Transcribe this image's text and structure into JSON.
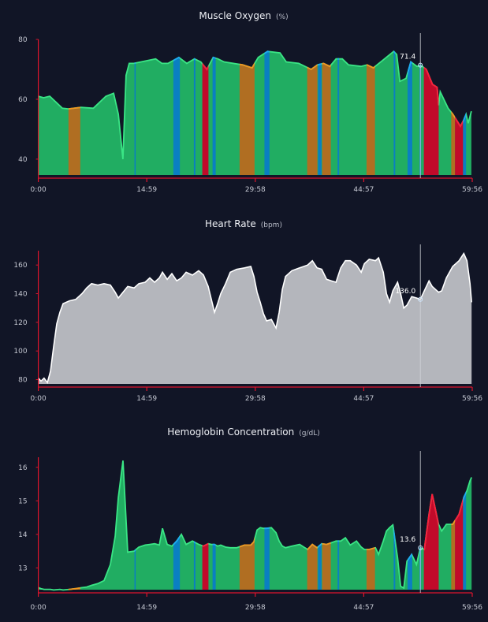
{
  "colors": {
    "background": "#111526",
    "axis": "#e0142c",
    "zones": {
      "green": {
        "fill": "#21ad62",
        "line": "#3ae585"
      },
      "orange": {
        "fill": "#b06e22",
        "line": "#f5941f"
      },
      "blue": {
        "fill": "#0a7fc2",
        "line": "#1ea8f5"
      },
      "red": {
        "fill": "#c20a2a",
        "line": "#ff1a3a"
      }
    },
    "heart_rate_fill": "#b4b6bc",
    "heart_rate_line": "#ffffff"
  },
  "chart_data": [
    {
      "type": "area",
      "title": "Muscle Oxygen",
      "unit": "(%)",
      "x_ticks": [
        "0:00",
        "14:59",
        "29:58",
        "44:57",
        "59:56"
      ],
      "x_range": [
        "0:00",
        "59:56"
      ],
      "y_ticks": [
        40,
        60,
        80
      ],
      "ylim": [
        34.7,
        80
      ],
      "grid": false,
      "fill_mode": "zones",
      "hover": {
        "x": "52:46",
        "value": "71.4"
      },
      "points": [
        [
          "0:00",
          61
        ],
        [
          "0:44",
          60.5
        ],
        [
          "1:35",
          61
        ],
        [
          "2:27",
          59
        ],
        [
          "3:19",
          57
        ],
        [
          "4:10",
          56.8
        ],
        [
          "5:53",
          57.3
        ],
        [
          "7:36",
          57
        ],
        [
          "8:28",
          59
        ],
        [
          "9:20",
          61
        ],
        [
          "10:24",
          62
        ],
        [
          "11:03",
          55
        ],
        [
          "11:41",
          40
        ],
        [
          "12:07",
          68
        ],
        [
          "12:33",
          72
        ],
        [
          "13:12",
          72
        ],
        [
          "16:12",
          73.5
        ],
        [
          "17:04",
          72
        ],
        [
          "17:55",
          72
        ],
        [
          "19:25",
          74
        ],
        [
          "20:30",
          72
        ],
        [
          "21:34",
          73.5
        ],
        [
          "22:26",
          72.5
        ],
        [
          "23:17",
          70
        ],
        [
          "24:09",
          74
        ],
        [
          "24:48",
          73.5
        ],
        [
          "25:39",
          72.5
        ],
        [
          "28:14",
          71.5
        ],
        [
          "29:31",
          70.5
        ],
        [
          "30:23",
          74
        ],
        [
          "31:40",
          76
        ],
        [
          "33:23",
          75.5
        ],
        [
          "34:15",
          72.5
        ],
        [
          "35:58",
          72
        ],
        [
          "37:41",
          70
        ],
        [
          "38:33",
          71.5
        ],
        [
          "39:24",
          72
        ],
        [
          "40:16",
          71
        ],
        [
          "41:08",
          73.5
        ],
        [
          "41:59",
          73.5
        ],
        [
          "42:51",
          71.5
        ],
        [
          "44:34",
          71
        ],
        [
          "45:25",
          71.5
        ],
        [
          "46:17",
          70.5
        ],
        [
          "47:34",
          73
        ],
        [
          "49:05",
          76
        ],
        [
          "49:30",
          75
        ],
        [
          "49:56",
          66
        ],
        [
          "50:48",
          67
        ],
        [
          "51:27",
          72.5
        ],
        [
          "52:18",
          71
        ],
        [
          "52:49",
          71.4
        ],
        [
          "53:35",
          70
        ],
        [
          "54:27",
          65
        ],
        [
          "55:05",
          64
        ],
        [
          "55:18",
          58
        ],
        [
          "55:31",
          62.5
        ],
        [
          "56:36",
          57
        ],
        [
          "57:15",
          55
        ],
        [
          "58:18",
          51
        ],
        [
          "58:45",
          53
        ],
        [
          "59:05",
          55
        ],
        [
          "59:23",
          52
        ],
        [
          "59:49",
          56
        ]
      ]
    },
    {
      "type": "area",
      "title": "Heart Rate",
      "unit": "(bpm)",
      "x_ticks": [
        "0:00",
        "14:59",
        "29:58",
        "44:57",
        "59:56"
      ],
      "x_range": [
        "0:00",
        "59:56"
      ],
      "y_ticks": [
        80,
        100,
        120,
        140,
        160
      ],
      "ylim": [
        77,
        170
      ],
      "grid": false,
      "fill_mode": "single",
      "hover": {
        "x": "52:46",
        "value": "136.0"
      },
      "points": [
        [
          "0:00",
          81
        ],
        [
          "0:22",
          79
        ],
        [
          "0:48",
          81
        ],
        [
          "1:15",
          78
        ],
        [
          "1:41",
          86
        ],
        [
          "2:07",
          103
        ],
        [
          "2:33",
          119
        ],
        [
          "2:59",
          127
        ],
        [
          "3:25",
          133
        ],
        [
          "4:18",
          135
        ],
        [
          "5:10",
          136
        ],
        [
          "6:02",
          140
        ],
        [
          "6:41",
          144
        ],
        [
          "7:21",
          147
        ],
        [
          "8:13",
          146
        ],
        [
          "9:05",
          147
        ],
        [
          "9:57",
          146
        ],
        [
          "10:37",
          141
        ],
        [
          "11:03",
          137
        ],
        [
          "11:42",
          141
        ],
        [
          "12:21",
          145
        ],
        [
          "13:14",
          144
        ],
        [
          "13:53",
          147
        ],
        [
          "14:45",
          148
        ],
        [
          "15:24",
          151
        ],
        [
          "16:04",
          148
        ],
        [
          "16:43",
          151
        ],
        [
          "17:09",
          155
        ],
        [
          "17:48",
          150
        ],
        [
          "18:27",
          154
        ],
        [
          "19:07",
          149
        ],
        [
          "19:46",
          151
        ],
        [
          "20:25",
          155
        ],
        [
          "21:17",
          153
        ],
        [
          "22:09",
          156
        ],
        [
          "22:49",
          153
        ],
        [
          "23:28",
          145
        ],
        [
          "23:54",
          136
        ],
        [
          "24:20",
          127
        ],
        [
          "24:46",
          133
        ],
        [
          "25:12",
          140
        ],
        [
          "25:52",
          147
        ],
        [
          "26:31",
          155
        ],
        [
          "27:23",
          157
        ],
        [
          "28:29",
          158
        ],
        [
          "29:21",
          159
        ],
        [
          "29:47",
          152
        ],
        [
          "30:13",
          141
        ],
        [
          "30:39",
          134
        ],
        [
          "31:06",
          126
        ],
        [
          "31:32",
          121
        ],
        [
          "32:11",
          122
        ],
        [
          "32:50",
          116
        ],
        [
          "33:16",
          127
        ],
        [
          "33:42",
          143
        ],
        [
          "34:09",
          152
        ],
        [
          "35:01",
          156
        ],
        [
          "36:06",
          158
        ],
        [
          "37:12",
          160
        ],
        [
          "37:51",
          163
        ],
        [
          "38:30",
          158
        ],
        [
          "39:09",
          157
        ],
        [
          "39:49",
          150
        ],
        [
          "40:28",
          149
        ],
        [
          "41:07",
          148
        ],
        [
          "41:46",
          158
        ],
        [
          "42:25",
          163
        ],
        [
          "43:05",
          163
        ],
        [
          "43:57",
          160
        ],
        [
          "44:36",
          155
        ],
        [
          "45:02",
          161
        ],
        [
          "45:42",
          164
        ],
        [
          "46:34",
          163
        ],
        [
          "47:00",
          165
        ],
        [
          "47:39",
          155
        ],
        [
          "48:05",
          140
        ],
        [
          "48:31",
          134
        ],
        [
          "48:58",
          142
        ],
        [
          "49:37",
          148
        ],
        [
          "50:03",
          140
        ],
        [
          "50:29",
          130
        ],
        [
          "50:55",
          132
        ],
        [
          "51:34",
          138
        ],
        [
          "52:14",
          137
        ],
        [
          "52:46",
          136
        ],
        [
          "53:19",
          142
        ],
        [
          "53:58",
          149
        ],
        [
          "54:24",
          145
        ],
        [
          "55:17",
          141
        ],
        [
          "55:43",
          142
        ],
        [
          "56:22",
          151
        ],
        [
          "57:14",
          159
        ],
        [
          "58:07",
          163
        ],
        [
          "58:46",
          168
        ],
        [
          "59:12",
          163
        ],
        [
          "59:38",
          147
        ],
        [
          "59:51",
          134
        ]
      ]
    },
    {
      "type": "area",
      "title": "Hemoglobin Concentration",
      "unit": "(g/dL)",
      "x_ticks": [
        "0:00",
        "14:59",
        "29:58",
        "44:57",
        "59:56"
      ],
      "x_range": [
        "0:00",
        "59:56"
      ],
      "y_ticks": [
        13,
        14,
        15,
        16
      ],
      "ylim": [
        12.35,
        16.3
      ],
      "grid": false,
      "fill_mode": "zones",
      "hover": {
        "x": "52:46",
        "value": "13.6"
      },
      "points": [
        [
          "0:00",
          12.41
        ],
        [
          "0:22",
          12.38
        ],
        [
          "0:48",
          12.36
        ],
        [
          "1:15",
          12.36
        ],
        [
          "1:41",
          12.36
        ],
        [
          "2:07",
          12.34
        ],
        [
          "2:33",
          12.35
        ],
        [
          "2:59",
          12.36
        ],
        [
          "3:25",
          12.34
        ],
        [
          "4:18",
          12.36
        ],
        [
          "5:10",
          12.38
        ],
        [
          "6:02",
          12.41
        ],
        [
          "6:41",
          12.43
        ],
        [
          "7:21",
          12.48
        ],
        [
          "8:13",
          12.53
        ],
        [
          "9:05",
          12.62
        ],
        [
          "9:57",
          13.1
        ],
        [
          "10:37",
          13.94
        ],
        [
          "11:03",
          15.1
        ],
        [
          "11:42",
          16.2
        ],
        [
          "12:21",
          13.47
        ],
        [
          "13:14",
          13.5
        ],
        [
          "13:53",
          13.62
        ],
        [
          "14:45",
          13.68
        ],
        [
          "15:24",
          13.7
        ],
        [
          "16:04",
          13.72
        ],
        [
          "16:43",
          13.68
        ],
        [
          "17:09",
          14.18
        ],
        [
          "17:48",
          13.7
        ],
        [
          "18:27",
          13.65
        ],
        [
          "19:07",
          13.8
        ],
        [
          "19:46",
          14.0
        ],
        [
          "20:25",
          13.7
        ],
        [
          "21:17",
          13.8
        ],
        [
          "22:09",
          13.7
        ],
        [
          "22:49",
          13.65
        ],
        [
          "23:28",
          13.72
        ],
        [
          "23:54",
          13.7
        ],
        [
          "24:20",
          13.7
        ],
        [
          "24:46",
          13.65
        ],
        [
          "25:12",
          13.68
        ],
        [
          "25:52",
          13.62
        ],
        [
          "26:31",
          13.6
        ],
        [
          "27:23",
          13.6
        ],
        [
          "28:29",
          13.68
        ],
        [
          "29:21",
          13.68
        ],
        [
          "29:47",
          13.78
        ],
        [
          "30:13",
          14.13
        ],
        [
          "30:39",
          14.2
        ],
        [
          "31:06",
          14.18
        ],
        [
          "31:32",
          14.18
        ],
        [
          "32:11",
          14.2
        ],
        [
          "32:50",
          14.05
        ],
        [
          "33:16",
          13.8
        ],
        [
          "33:42",
          13.65
        ],
        [
          "34:09",
          13.6
        ],
        [
          "35:01",
          13.65
        ],
        [
          "36:06",
          13.7
        ],
        [
          "37:12",
          13.55
        ],
        [
          "37:51",
          13.7
        ],
        [
          "38:30",
          13.6
        ],
        [
          "39:09",
          13.72
        ],
        [
          "39:49",
          13.7
        ],
        [
          "40:28",
          13.75
        ],
        [
          "41:07",
          13.8
        ],
        [
          "41:46",
          13.8
        ],
        [
          "42:25",
          13.9
        ],
        [
          "43:05",
          13.68
        ],
        [
          "43:57",
          13.8
        ],
        [
          "44:36",
          13.62
        ],
        [
          "45:02",
          13.55
        ],
        [
          "45:42",
          13.55
        ],
        [
          "46:34",
          13.6
        ],
        [
          "47:00",
          13.4
        ],
        [
          "47:39",
          13.8
        ],
        [
          "48:05",
          14.1
        ],
        [
          "48:31",
          14.2
        ],
        [
          "48:58",
          14.28
        ],
        [
          "49:37",
          13.3
        ],
        [
          "50:03",
          12.45
        ],
        [
          "50:29",
          12.4
        ],
        [
          "50:55",
          13.2
        ],
        [
          "51:34",
          13.4
        ],
        [
          "52:14",
          13.1
        ],
        [
          "52:46",
          13.6
        ],
        [
          "53:19",
          13.55
        ],
        [
          "53:58",
          14.6
        ],
        [
          "54:24",
          15.2
        ],
        [
          "55:17",
          14.3
        ],
        [
          "55:43",
          14.1
        ],
        [
          "56:22",
          14.3
        ],
        [
          "57:14",
          14.3
        ],
        [
          "58:07",
          14.6
        ],
        [
          "58:46",
          15.1
        ],
        [
          "59:12",
          15.3
        ],
        [
          "59:38",
          15.6
        ],
        [
          "59:51",
          15.7
        ]
      ]
    }
  ],
  "zones": [
    [
      "4:10",
      "5:48",
      "orange"
    ],
    [
      "13:17",
      "13:27",
      "blue"
    ],
    [
      "18:39",
      "19:33",
      "blue"
    ],
    [
      "21:29",
      "21:42",
      "blue"
    ],
    [
      "22:39",
      "23:30",
      "red"
    ],
    [
      "24:04",
      "24:30",
      "blue"
    ],
    [
      "27:48",
      "29:52",
      "orange"
    ],
    [
      "31:14",
      "31:56",
      "blue"
    ],
    [
      "37:08",
      "38:33",
      "orange"
    ],
    [
      "38:38",
      "39:07",
      "blue"
    ],
    [
      "39:12",
      "40:24",
      "orange"
    ],
    [
      "41:20",
      "41:33",
      "blue"
    ],
    [
      "45:20",
      "46:30",
      "orange"
    ],
    [
      "49:05",
      "49:18",
      "blue"
    ],
    [
      "51:00",
      "51:39",
      "blue"
    ],
    [
      "52:39",
      "52:52",
      "blue"
    ],
    [
      "53:15",
      "55:18",
      "red"
    ],
    [
      "57:02",
      "57:33",
      "orange"
    ],
    [
      "57:33",
      "58:40",
      "red"
    ],
    [
      "58:40",
      "59:05",
      "blue"
    ]
  ]
}
